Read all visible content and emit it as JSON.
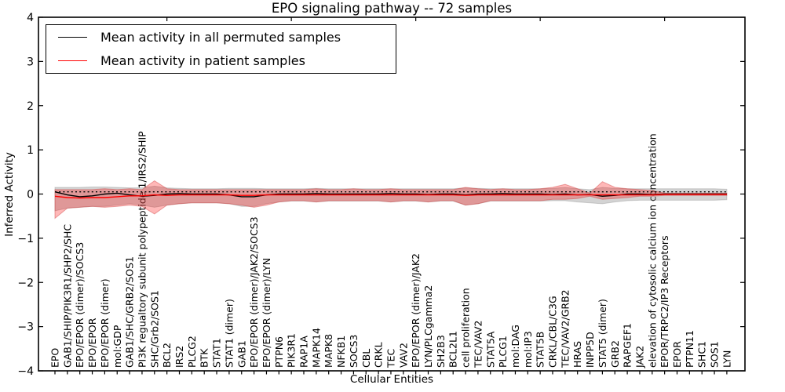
{
  "chart_data": {
    "type": "line",
    "title": "EPO signaling pathway -- 72 samples",
    "xlabel": "Cellular Entities",
    "ylabel": "Inferred Activity",
    "ylim": [
      -4,
      4
    ],
    "yticks": [
      4,
      3,
      2,
      1,
      0,
      -1,
      -2,
      -3,
      -4
    ],
    "grid": false,
    "legend_position": "upper left",
    "legend": [
      {
        "label": "Mean activity in all permuted samples",
        "color": "#000000"
      },
      {
        "label": "Mean activity in patient samples",
        "color": "#ff0000"
      }
    ],
    "dotted_reference": 0.05,
    "categories": [
      "EPO",
      "GAB1/SHIP/PIK3R1/SHP2/SHC",
      "EPO/EPOR (dimer)/SOCS3",
      "EPO/EPOR",
      "EPO/EPOR (dimer)",
      "mol:GDP",
      "GAB1/SHC/GRB2/SOS1",
      "PI3K regualtory subunit polypeptide 1/IRS2/SHIP",
      "SHC/Grb2/SOS1",
      "BCL2",
      "IRS2",
      "PLCG2",
      "BTK",
      "STAT1",
      "STAT1 (dimer)",
      "GAB1",
      "EPO/EPOR (dimer)/JAK2/SOCS3",
      "EPO/EPOR (dimer)/LYN",
      "PTPN6",
      "PIK3R1",
      "RAP1A",
      "MAPK14",
      "MAPK8",
      "NFKB1",
      "SOCS3",
      "CBL",
      "CRKL",
      "TEC",
      "VAV2",
      "EPO/EPOR (dimer)/JAK2",
      "LYN/PLCgamma2",
      "SH2B3",
      "BCL2L1",
      "cell proliferation",
      "TEC/VAV2",
      "STAT5A",
      "PLCG1",
      "mol:DAG",
      "mol:IP3",
      "STAT5B",
      "CRKL/CBL/C3G",
      "TEC/VAV2/GRB2",
      "HRAS",
      "INPP5D",
      "STAT5 (dimer)",
      "GRB2",
      "RAPGEF1",
      "JAK2",
      "elevation of cytosolic calcium ion concentration",
      "EPOR/TRPC2/IP3 Receptors",
      "EPOR",
      "PTPN11",
      "SHC1",
      "SOS1",
      "LYN"
    ],
    "series": [
      {
        "name": "Mean activity in all permuted samples",
        "type": "line",
        "color": "#000000",
        "values": [
          0.05,
          -0.02,
          -0.06,
          -0.04,
          0,
          0.02,
          -0.02,
          -0.05,
          -0.03,
          0,
          0.01,
          0,
          0,
          0,
          -0.02,
          -0.06,
          -0.06,
          -0.02,
          0,
          0,
          0,
          0.01,
          0,
          0,
          0,
          0,
          0,
          0.01,
          0,
          0,
          -0.01,
          0,
          0,
          -0.02,
          0,
          0,
          0.01,
          0,
          0,
          0,
          -0.01,
          0,
          -0.02,
          -0.01,
          -0.05,
          -0.03,
          0,
          0,
          -0.01,
          0,
          0,
          0,
          0,
          0,
          0
        ]
      },
      {
        "name": "Mean activity in patient samples",
        "type": "line",
        "color": "#ff0000",
        "values": [
          -0.05,
          -0.08,
          -0.09,
          -0.08,
          -0.08,
          -0.06,
          -0.04,
          -0.04,
          -0.02,
          -0.03,
          -0.02,
          -0.02,
          -0.02,
          -0.02,
          -0.02,
          -0.03,
          -0.03,
          -0.02,
          -0.02,
          -0.02,
          -0.02,
          -0.02,
          -0.02,
          -0.02,
          -0.02,
          -0.02,
          -0.02,
          -0.02,
          -0.02,
          -0.02,
          -0.02,
          -0.02,
          -0.02,
          -0.03,
          -0.02,
          -0.02,
          -0.02,
          -0.02,
          -0.02,
          -0.02,
          -0.02,
          -0.02,
          -0.02,
          -0.02,
          -0.02,
          -0.02,
          -0.02,
          -0.02,
          -0.02,
          -0.01,
          -0.01,
          -0.01,
          -0.01,
          -0.01,
          -0.01
        ]
      },
      {
        "name": "Permuted samples std band",
        "type": "band",
        "color": "#808080",
        "opacity": 0.35,
        "lower": [
          -0.38,
          -0.32,
          -0.3,
          -0.28,
          -0.28,
          -0.25,
          -0.22,
          -0.25,
          -0.3,
          -0.25,
          -0.22,
          -0.2,
          -0.2,
          -0.2,
          -0.22,
          -0.28,
          -0.28,
          -0.22,
          -0.18,
          -0.16,
          -0.16,
          -0.18,
          -0.16,
          -0.16,
          -0.16,
          -0.16,
          -0.16,
          -0.18,
          -0.16,
          -0.16,
          -0.18,
          -0.16,
          -0.16,
          -0.25,
          -0.22,
          -0.16,
          -0.16,
          -0.16,
          -0.16,
          -0.16,
          -0.15,
          -0.15,
          -0.18,
          -0.2,
          -0.22,
          -0.18,
          -0.15,
          -0.14,
          -0.14,
          -0.14,
          -0.14,
          -0.14,
          -0.14,
          -0.14,
          -0.13
        ],
        "upper": [
          0.15,
          0.15,
          0.15,
          0.16,
          0.16,
          0.15,
          0.14,
          0.14,
          0.18,
          0.14,
          0.13,
          0.12,
          0.12,
          0.12,
          0.13,
          0.13,
          0.13,
          0.12,
          0.12,
          0.12,
          0.12,
          0.13,
          0.12,
          0.12,
          0.12,
          0.12,
          0.12,
          0.12,
          0.12,
          0.12,
          0.12,
          0.12,
          0.12,
          0.14,
          0.13,
          0.12,
          0.12,
          0.12,
          0.12,
          0.12,
          0.13,
          0.15,
          0.12,
          0.1,
          0.15,
          0.13,
          0.12,
          0.12,
          0.12,
          0.12,
          0.12,
          0.12,
          0.12,
          0.12,
          0.11
        ]
      },
      {
        "name": "Patient samples std band",
        "type": "band",
        "color": "#ff0000",
        "opacity": 0.28,
        "lower": [
          -0.55,
          -0.32,
          -0.3,
          -0.28,
          -0.3,
          -0.28,
          -0.25,
          -0.28,
          -0.45,
          -0.25,
          -0.22,
          -0.2,
          -0.2,
          -0.2,
          -0.22,
          -0.25,
          -0.3,
          -0.25,
          -0.18,
          -0.15,
          -0.15,
          -0.18,
          -0.15,
          -0.15,
          -0.15,
          -0.15,
          -0.15,
          -0.18,
          -0.15,
          -0.15,
          -0.18,
          -0.15,
          -0.15,
          -0.25,
          -0.22,
          -0.15,
          -0.15,
          -0.15,
          -0.15,
          -0.15,
          -0.12,
          -0.12,
          -0.1,
          -0.05,
          -0.12,
          -0.1,
          -0.08,
          -0.05,
          -0.05,
          -0.03,
          -0.03,
          -0.03,
          -0.03,
          -0.03,
          -0.03
        ],
        "upper": [
          0.1,
          0.1,
          0.1,
          0.1,
          0.12,
          0.1,
          0.12,
          0.1,
          0.3,
          0.12,
          0.1,
          0.1,
          0.1,
          0.1,
          0.1,
          0.1,
          0.1,
          0.1,
          0.1,
          0.1,
          0.1,
          0.12,
          0.1,
          0.1,
          0.12,
          0.1,
          0.1,
          0.12,
          0.1,
          0.1,
          0.1,
          0.1,
          0.1,
          0.15,
          0.12,
          0.1,
          0.12,
          0.1,
          0.1,
          0.12,
          0.15,
          0.22,
          0.12,
          0.02,
          0.28,
          0.15,
          0.12,
          0.1,
          0.08,
          0.02,
          0.02,
          0.02,
          0.02,
          0.02,
          0.02
        ]
      }
    ]
  },
  "colors": {
    "axis": "#000000",
    "permuted_line": "#000000",
    "patient_line": "#ff0000",
    "permuted_band": "#808080",
    "patient_band": "#ff0000",
    "background": "#ffffff"
  }
}
